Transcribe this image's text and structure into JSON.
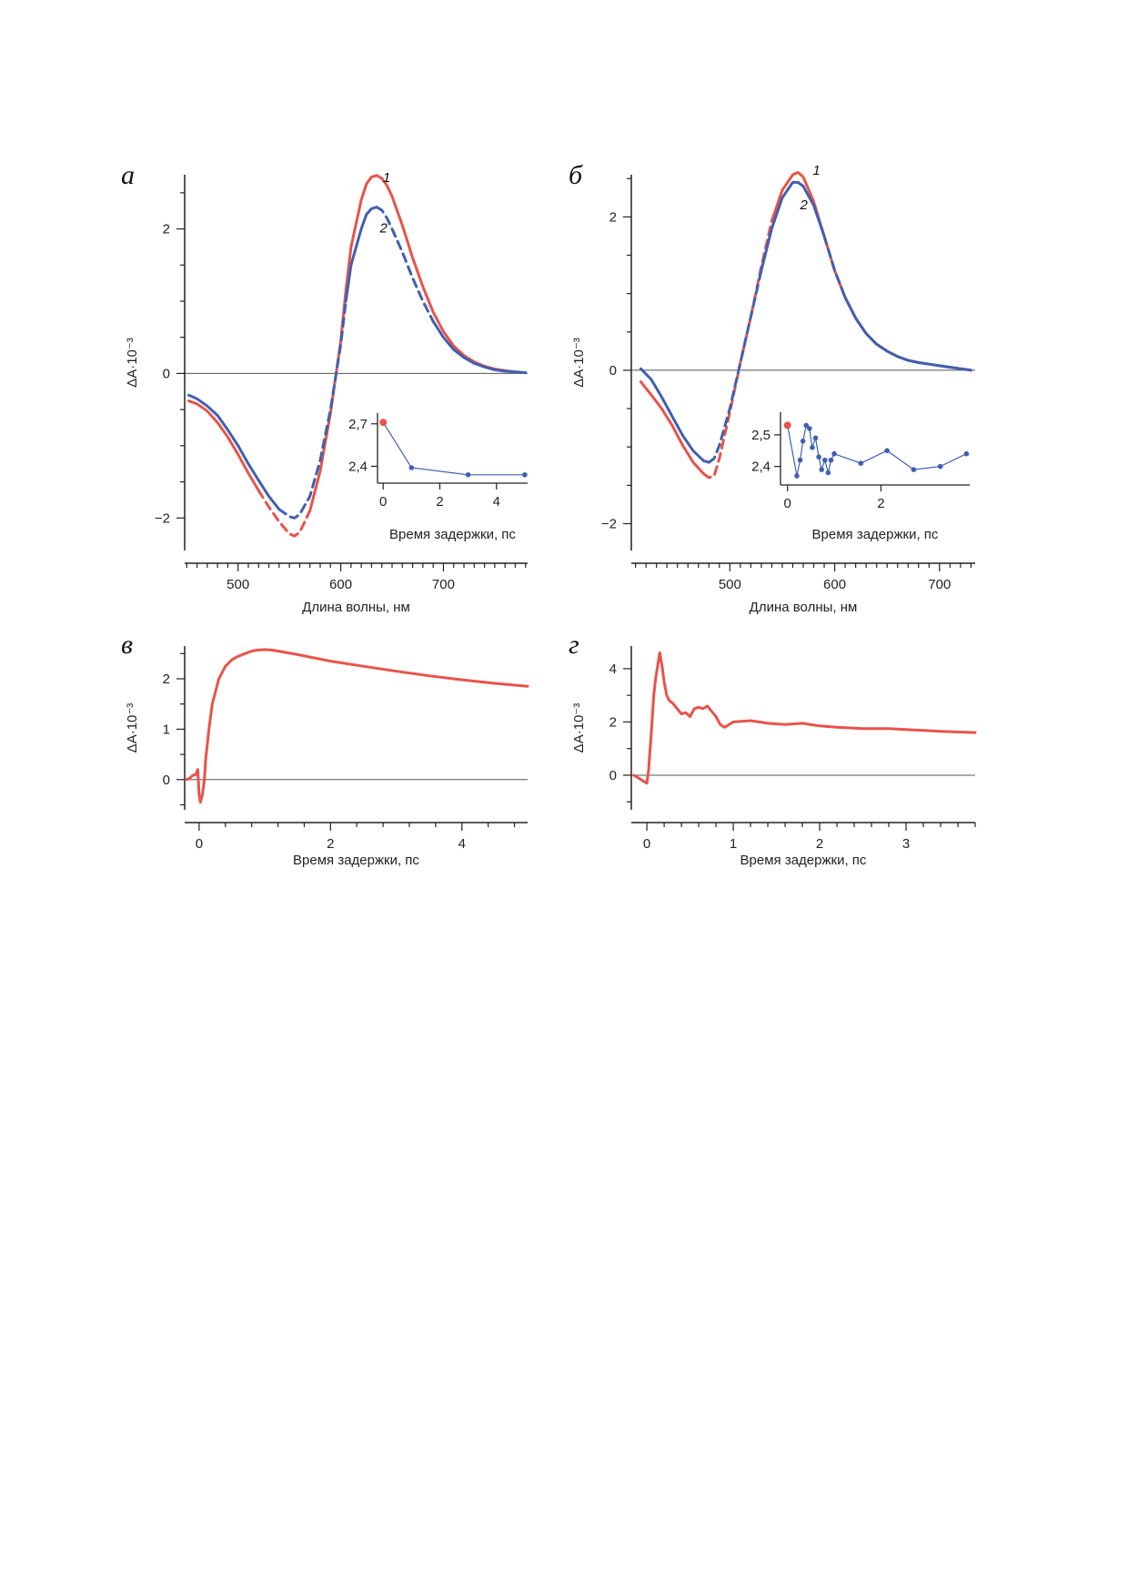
{
  "colors": {
    "red": "#e8534a",
    "blue": "#3f60b0",
    "axis": "#222222",
    "zero": "#555555"
  },
  "chart_data": [
    {
      "panel": "а",
      "type": "line",
      "xlabel": "Длина волны, нм",
      "ylabel": "ΔA·10⁻³",
      "xlim": [
        448,
        782
      ],
      "ylim": [
        -2.45,
        2.75
      ],
      "xticks": [
        500,
        600,
        700
      ],
      "yticks": [
        -2,
        0,
        2
      ],
      "zero_line": true,
      "series": [
        {
          "name": "1",
          "color": "red",
          "x": [
            452,
            460,
            470,
            480,
            490,
            500,
            510,
            520,
            530,
            540,
            550,
            555,
            560,
            570,
            580,
            590,
            600,
            605,
            610,
            620,
            625,
            630,
            635,
            640,
            645,
            650,
            660,
            670,
            680,
            690,
            700,
            710,
            720,
            730,
            740,
            750,
            760,
            770,
            780
          ],
          "y": [
            -0.38,
            -0.42,
            -0.52,
            -0.68,
            -0.88,
            -1.12,
            -1.38,
            -1.62,
            -1.85,
            -2.05,
            -2.22,
            -2.25,
            -2.2,
            -1.9,
            -1.35,
            -0.55,
            0.45,
            1.15,
            1.75,
            2.4,
            2.62,
            2.72,
            2.74,
            2.7,
            2.6,
            2.45,
            2.05,
            1.6,
            1.2,
            0.85,
            0.58,
            0.38,
            0.25,
            0.16,
            0.1,
            0.06,
            0.04,
            0.02,
            0.01
          ],
          "dashed_x_range": [
            530,
            575
          ]
        },
        {
          "name": "2",
          "color": "blue",
          "x": [
            452,
            460,
            470,
            480,
            490,
            500,
            510,
            520,
            530,
            540,
            550,
            555,
            560,
            570,
            580,
            590,
            600,
            605,
            610,
            620,
            625,
            630,
            635,
            640,
            645,
            650,
            660,
            670,
            680,
            690,
            700,
            710,
            720,
            730,
            740,
            750,
            760,
            770,
            780
          ],
          "y": [
            -0.3,
            -0.35,
            -0.45,
            -0.58,
            -0.78,
            -1.0,
            -1.25,
            -1.48,
            -1.7,
            -1.88,
            -1.98,
            -2.0,
            -1.95,
            -1.7,
            -1.2,
            -0.5,
            0.4,
            1.0,
            1.5,
            2.0,
            2.2,
            2.28,
            2.3,
            2.26,
            2.15,
            2.0,
            1.68,
            1.32,
            1.0,
            0.72,
            0.5,
            0.33,
            0.22,
            0.14,
            0.09,
            0.05,
            0.03,
            0.02,
            0.01
          ],
          "dashed_x_range": [
            545,
            605
          ],
          "dashed_x_range_2": [
            640,
            690
          ]
        }
      ],
      "curve_labels": [
        {
          "text": "1",
          "x": 641,
          "y": 2.65
        },
        {
          "text": "2",
          "x": 638,
          "y": 1.95
        }
      ],
      "inset": {
        "xlabel": "Время задержки, пс",
        "xlim": [
          -0.2,
          5.1
        ],
        "ylim": [
          2.3,
          2.75
        ],
        "xticks": [
          0,
          2,
          4
        ],
        "yticks": [
          2.4,
          2.7
        ],
        "ytick_labels": [
          "2,4",
          "2,7"
        ],
        "x": [
          0,
          1,
          3,
          5
        ],
        "y": [
          2.71,
          2.39,
          2.34,
          2.34
        ],
        "first_point_color": "red"
      }
    },
    {
      "panel": "б",
      "type": "line",
      "xlabel": "Длина волны, нм",
      "ylabel": "ΔA·10⁻³",
      "xlim": [
        406,
        734
      ],
      "ylim": [
        -2.35,
        2.55
      ],
      "xticks": [
        500,
        600,
        700
      ],
      "yticks": [
        -2,
        0,
        2
      ],
      "zero_line": true,
      "series": [
        {
          "name": "1",
          "color": "red",
          "x": [
            415,
            425,
            435,
            445,
            455,
            465,
            475,
            480,
            485,
            490,
            500,
            510,
            520,
            530,
            540,
            550,
            560,
            565,
            570,
            580,
            590,
            600,
            610,
            620,
            630,
            640,
            650,
            660,
            670,
            680,
            690,
            700,
            710,
            720,
            730
          ],
          "y": [
            -0.15,
            -0.32,
            -0.5,
            -0.72,
            -0.98,
            -1.2,
            -1.35,
            -1.4,
            -1.38,
            -1.15,
            -0.55,
            0.1,
            0.7,
            1.35,
            1.95,
            2.35,
            2.55,
            2.58,
            2.52,
            2.2,
            1.75,
            1.3,
            0.95,
            0.68,
            0.48,
            0.34,
            0.25,
            0.18,
            0.13,
            0.1,
            0.08,
            0.06,
            0.04,
            0.02,
            0.0
          ],
          "dashed_x_range": [
            480,
            545
          ]
        },
        {
          "name": "2",
          "color": "blue",
          "x": [
            415,
            425,
            435,
            445,
            455,
            465,
            475,
            480,
            485,
            490,
            500,
            510,
            520,
            530,
            540,
            550,
            560,
            565,
            570,
            580,
            590,
            600,
            610,
            620,
            630,
            640,
            650,
            660,
            670,
            680,
            690,
            700,
            710,
            720,
            730
          ],
          "y": [
            0.02,
            -0.12,
            -0.35,
            -0.6,
            -0.85,
            -1.05,
            -1.18,
            -1.2,
            -1.15,
            -0.98,
            -0.5,
            0.1,
            0.7,
            1.3,
            1.85,
            2.25,
            2.45,
            2.45,
            2.4,
            2.15,
            1.75,
            1.3,
            0.95,
            0.68,
            0.48,
            0.34,
            0.25,
            0.18,
            0.13,
            0.1,
            0.08,
            0.06,
            0.04,
            0.02,
            0.0
          ],
          "dashed_x_range": [
            485,
            530
          ],
          "dashed_x_range_2": [
            600,
            615
          ]
        }
      ],
      "curve_labels": [
        {
          "text": "1",
          "x": 579,
          "y": 2.55
        },
        {
          "text": "2",
          "x": 567,
          "y": 2.1
        }
      ],
      "inset": {
        "xlabel": "Время задержки, пс",
        "xlim": [
          -0.15,
          3.9
        ],
        "ylim": [
          2.35,
          2.56
        ],
        "xticks": [
          0,
          2
        ],
        "yticks": [
          2.4,
          2.5
        ],
        "ytick_labels": [
          "2,4",
          "2,5"
        ],
        "x": [
          0.0,
          0.2,
          0.27,
          0.33,
          0.4,
          0.47,
          0.53,
          0.6,
          0.67,
          0.73,
          0.8,
          0.87,
          0.93,
          1.0,
          1.57,
          2.13,
          2.7,
          3.27,
          3.83
        ],
        "y": [
          2.53,
          2.37,
          2.42,
          2.48,
          2.53,
          2.52,
          2.46,
          2.49,
          2.43,
          2.39,
          2.42,
          2.38,
          2.42,
          2.44,
          2.41,
          2.45,
          2.39,
          2.4,
          2.44
        ],
        "first_point_color": "red"
      }
    },
    {
      "panel": "в",
      "type": "line",
      "xlabel": "Время задержки, пс",
      "ylabel": "ΔA·10⁻³",
      "xlim": [
        -0.22,
        5.0
      ],
      "ylim": [
        -0.6,
        2.65
      ],
      "xticks": [
        0,
        2,
        4
      ],
      "yticks": [
        0,
        1,
        2
      ],
      "zero_line": true,
      "series": [
        {
          "color": "red",
          "x": [
            -0.2,
            -0.15,
            -0.1,
            -0.05,
            -0.02,
            0.0,
            0.02,
            0.05,
            0.08,
            0.1,
            0.15,
            0.2,
            0.3,
            0.4,
            0.5,
            0.6,
            0.7,
            0.8,
            0.9,
            1.0,
            1.1,
            1.2,
            1.5,
            2.0,
            2.5,
            3.0,
            3.5,
            4.0,
            4.5,
            5.0
          ],
          "y": [
            0.0,
            0.02,
            0.08,
            0.1,
            0.2,
            -0.3,
            -0.45,
            -0.3,
            0.0,
            0.4,
            1.0,
            1.5,
            2.0,
            2.25,
            2.38,
            2.45,
            2.5,
            2.55,
            2.57,
            2.58,
            2.57,
            2.55,
            2.48,
            2.35,
            2.25,
            2.15,
            2.06,
            1.98,
            1.91,
            1.85
          ]
        }
      ]
    },
    {
      "panel": "г",
      "type": "line",
      "xlabel": "Время задержки, пс",
      "ylabel": "ΔA·10⁻³",
      "xlim": [
        -0.18,
        3.8
      ],
      "ylim": [
        -1.3,
        4.85
      ],
      "xticks": [
        0,
        1,
        2,
        3
      ],
      "yticks": [
        0,
        2,
        4
      ],
      "zero_line": true,
      "series": [
        {
          "color": "red",
          "x": [
            -0.15,
            -0.1,
            -0.05,
            0.0,
            0.02,
            0.05,
            0.08,
            0.1,
            0.13,
            0.15,
            0.18,
            0.2,
            0.23,
            0.26,
            0.3,
            0.35,
            0.4,
            0.45,
            0.5,
            0.55,
            0.6,
            0.65,
            0.7,
            0.75,
            0.8,
            0.85,
            0.9,
            1.0,
            1.2,
            1.4,
            1.6,
            1.8,
            2.0,
            2.2,
            2.5,
            2.8,
            3.1,
            3.4,
            3.8
          ],
          "y": [
            0.0,
            -0.1,
            -0.2,
            -0.3,
            0.2,
            1.5,
            3.0,
            3.6,
            4.2,
            4.6,
            4.0,
            3.5,
            3.0,
            2.8,
            2.7,
            2.5,
            2.3,
            2.35,
            2.2,
            2.5,
            2.55,
            2.5,
            2.6,
            2.4,
            2.2,
            1.9,
            1.8,
            2.0,
            2.05,
            1.95,
            1.9,
            1.95,
            1.85,
            1.8,
            1.75,
            1.75,
            1.7,
            1.65,
            1.6
          ]
        }
      ]
    }
  ]
}
